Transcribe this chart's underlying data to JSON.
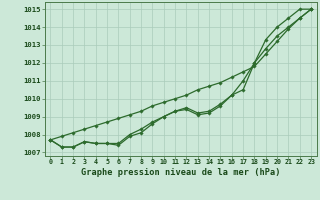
{
  "x": [
    0,
    1,
    2,
    3,
    4,
    5,
    6,
    7,
    8,
    9,
    10,
    11,
    12,
    13,
    14,
    15,
    16,
    17,
    18,
    19,
    20,
    21,
    22,
    23
  ],
  "line_straight": [
    1007.7,
    1007.9,
    1008.1,
    1008.3,
    1008.5,
    1008.7,
    1008.9,
    1009.1,
    1009.3,
    1009.6,
    1009.8,
    1010.0,
    1010.2,
    1010.5,
    1010.7,
    1010.9,
    1011.2,
    1011.5,
    1011.8,
    1012.5,
    1013.2,
    1013.9,
    1014.5,
    1015.0
  ],
  "line_mid": [
    1007.7,
    1007.3,
    1007.3,
    1007.6,
    1007.5,
    1007.5,
    1007.5,
    1008.0,
    1008.3,
    1008.7,
    1009.0,
    1009.3,
    1009.5,
    1009.2,
    1009.3,
    1009.7,
    1010.2,
    1010.5,
    1012.0,
    1013.3,
    1014.0,
    1014.5,
    1015.0,
    1015.0
  ],
  "line_low": [
    1007.7,
    1007.3,
    1007.3,
    1007.6,
    1007.5,
    1007.5,
    1007.4,
    1007.9,
    1008.1,
    1008.6,
    1009.0,
    1009.3,
    1009.4,
    1009.1,
    1009.2,
    1009.6,
    1010.2,
    1011.0,
    1012.0,
    1012.8,
    1013.5,
    1014.0,
    1014.5,
    1015.0
  ],
  "line_color": "#2d6b2d",
  "bg_color": "#cce8d8",
  "grid_color": "#aaccbb",
  "ylim": [
    1006.8,
    1015.4
  ],
  "yticks": [
    1007,
    1008,
    1009,
    1010,
    1011,
    1012,
    1013,
    1014,
    1015
  ],
  "xlabel": "Graphe pression niveau de la mer (hPa)",
  "tick_color": "#1a4a1a",
  "marker": "D",
  "markersize": 1.8,
  "linewidth": 0.9
}
